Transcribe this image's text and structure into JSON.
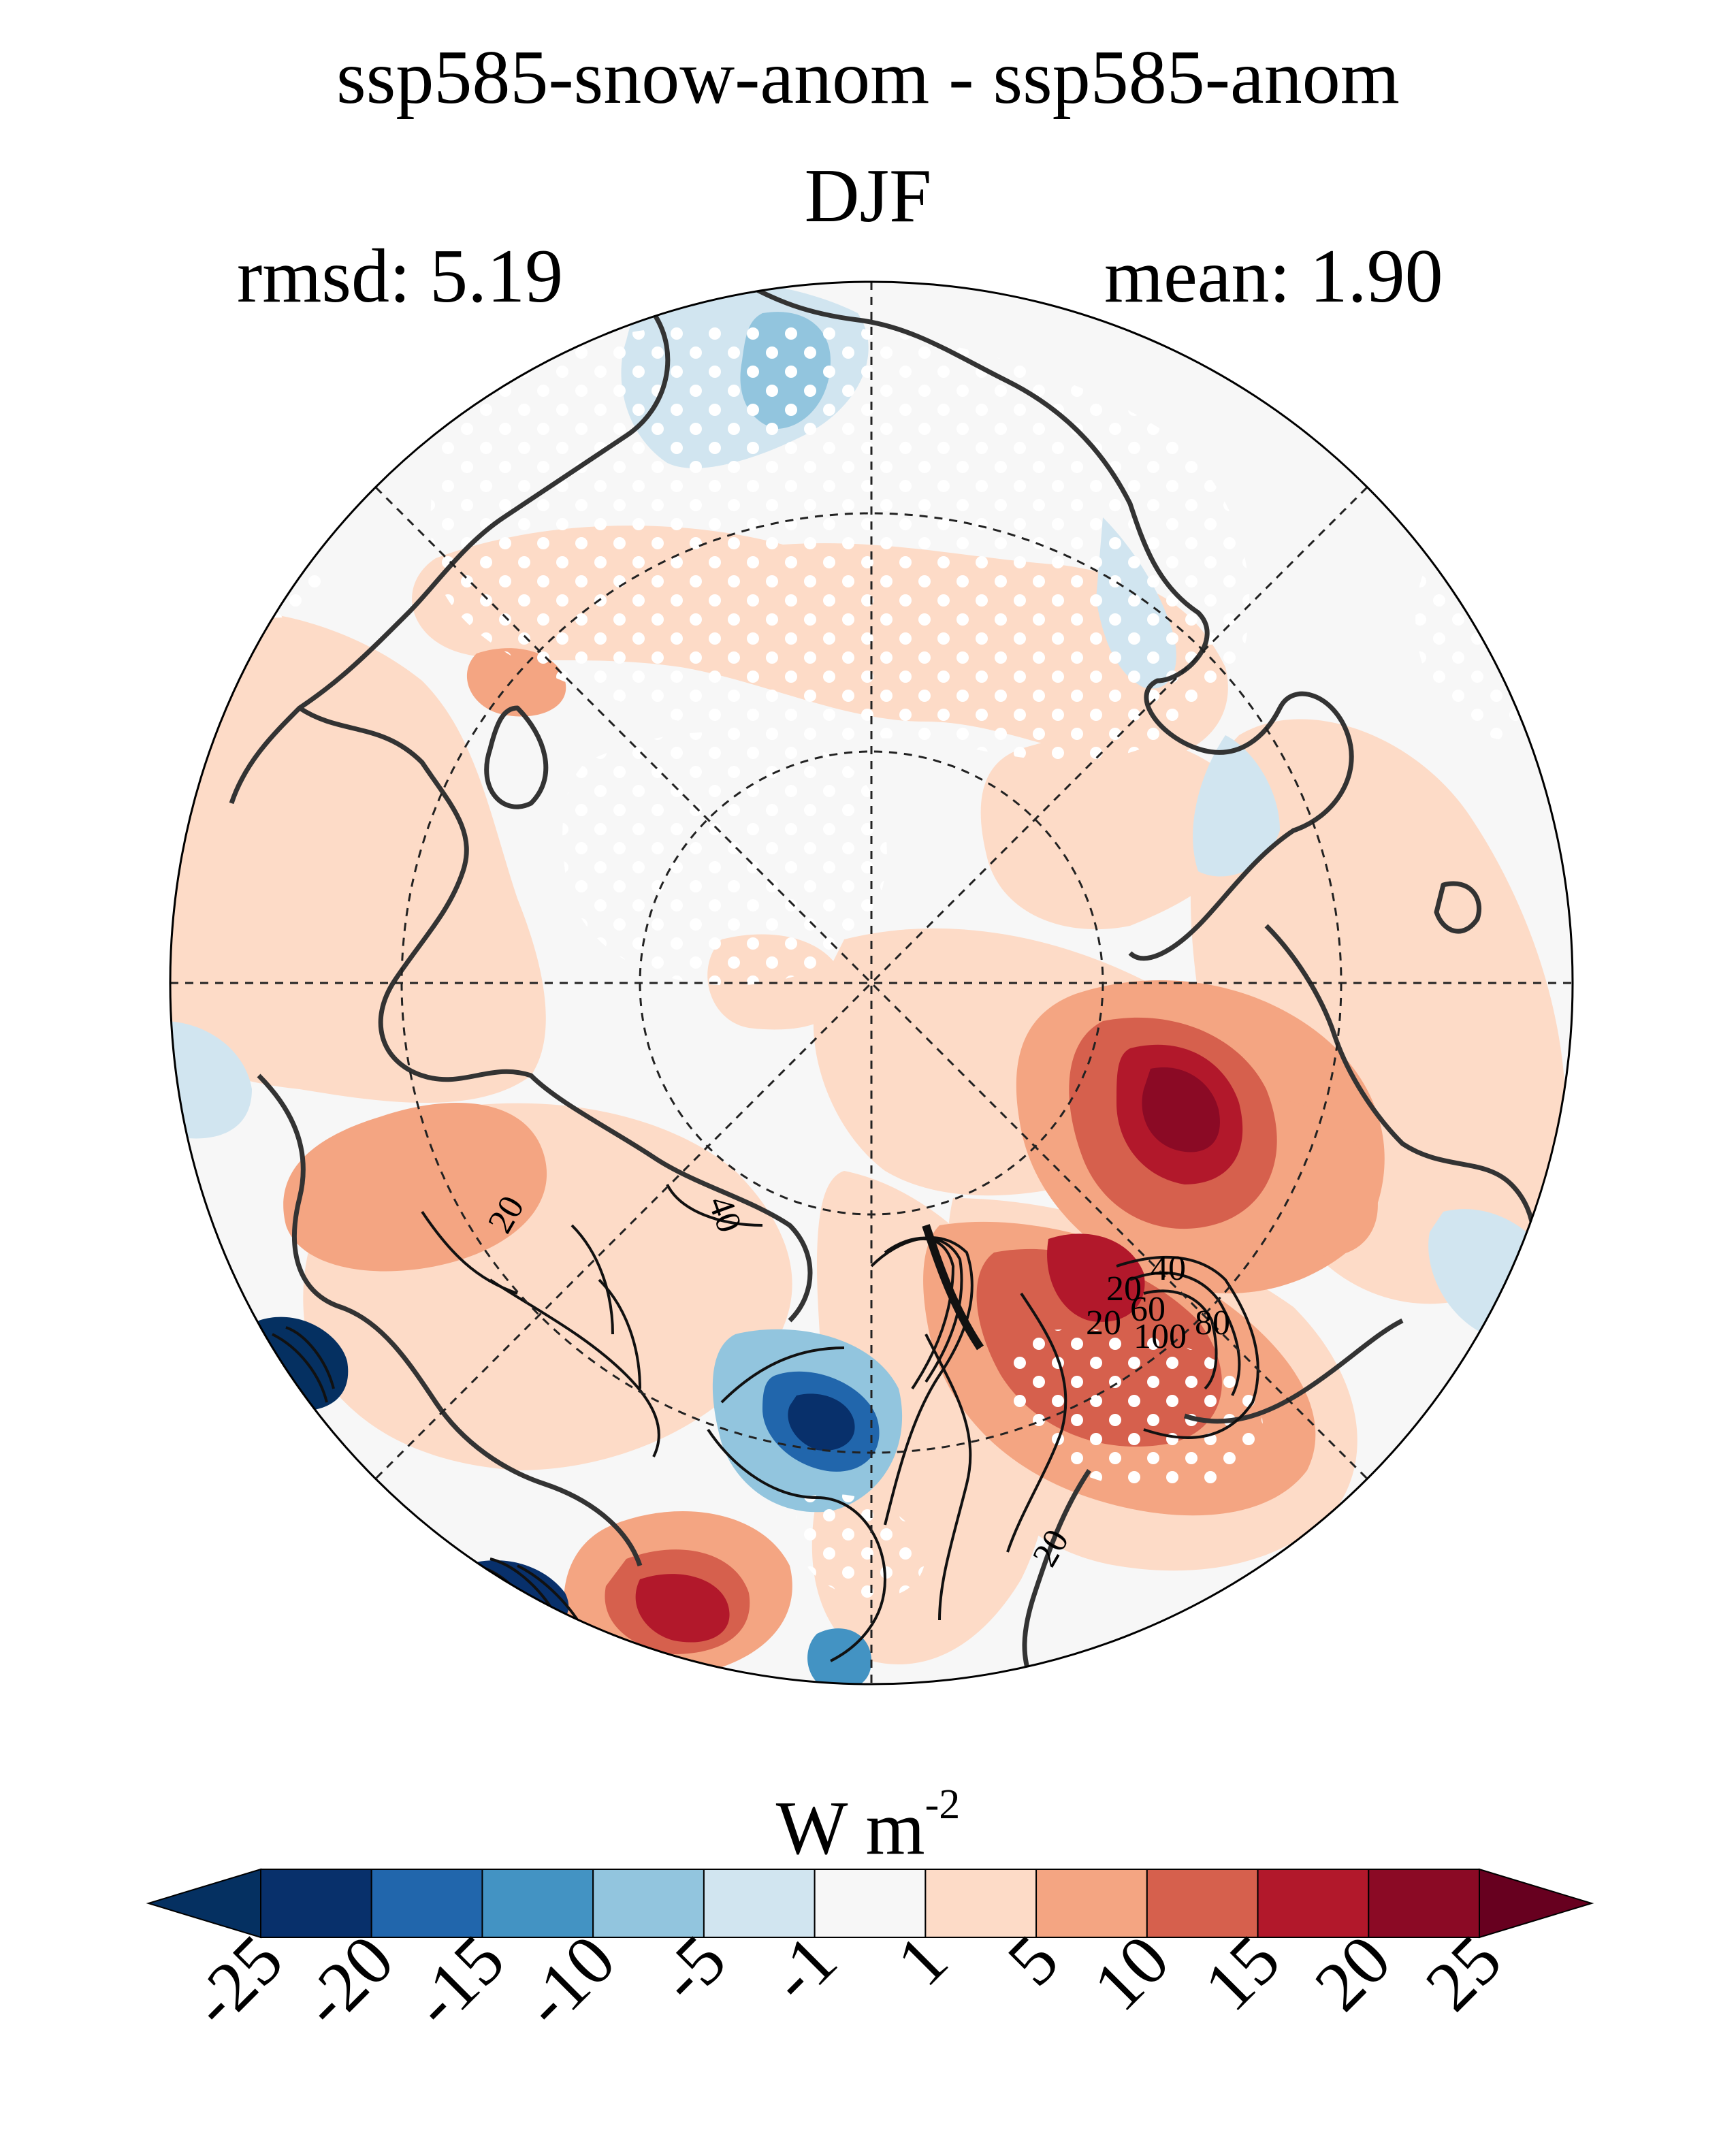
{
  "title": "ssp585-snow-anom - ssp585-anom",
  "subtitle": "DJF",
  "rmsd_label": "rmsd: 5.19",
  "mean_label": "mean: 1.90",
  "units": {
    "base": "W m",
    "exponent": "-2"
  },
  "colorbar": {
    "ticks": [
      "-25",
      "-20",
      "-15",
      "-10",
      "-5",
      "-1",
      "1",
      "5",
      "10",
      "15",
      "20",
      "25"
    ],
    "colors": [
      "#053061",
      "#08306b",
      "#2166ac",
      "#4393c3",
      "#92c5de",
      "#d1e5f0",
      "#f7f7f7",
      "#fddbc7",
      "#f4a582",
      "#d6604d",
      "#b2182b",
      "#8b0a25",
      "#67001f"
    ],
    "under_color": "#053061",
    "over_color": "#67001f"
  },
  "contour_labels": [
    "20",
    "40",
    "20",
    "40",
    "20",
    "60",
    "100",
    "80",
    "20"
  ],
  "map": {
    "projection": "north-polar-stereographic",
    "graticule": "dashed",
    "stippling": "white dots = non-significant"
  }
}
